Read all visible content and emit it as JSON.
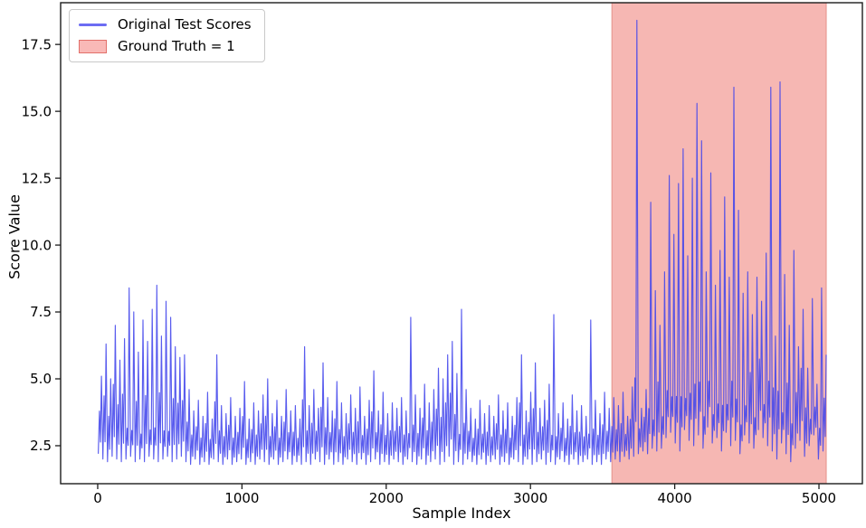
{
  "chart_data": {
    "type": "line",
    "title": "",
    "xlabel": "Sample Index",
    "ylabel": "Score Value",
    "xlim": [
      -257,
      5301
    ],
    "ylim": [
      1.08,
      19.06
    ],
    "grid": false,
    "n_samples": 5050,
    "x_ticks": [
      {
        "v": 0,
        "label": "0"
      },
      {
        "v": 1000,
        "label": "1000"
      },
      {
        "v": 2000,
        "label": "2000"
      },
      {
        "v": 3000,
        "label": "3000"
      },
      {
        "v": 4000,
        "label": "4000"
      },
      {
        "v": 5000,
        "label": "5000"
      }
    ],
    "y_ticks": [
      {
        "v": 2.5,
        "label": "2.5"
      },
      {
        "v": 5.0,
        "label": "5.0"
      },
      {
        "v": 7.5,
        "label": "7.5"
      },
      {
        "v": 10.0,
        "label": "10.0"
      },
      {
        "v": 12.5,
        "label": "12.5"
      },
      {
        "v": 15.0,
        "label": "15.0"
      },
      {
        "v": 17.5,
        "label": "17.5"
      }
    ],
    "legend": [
      {
        "label": "Original Test Scores",
        "type": "line",
        "color": "#4d4dff"
      },
      {
        "label": "Ground Truth = 1",
        "type": "patch",
        "fill": "#f9b9b7",
        "edge": "#e2706a"
      }
    ],
    "legend_position": "upper left",
    "anomaly_region": {
      "label": "Ground Truth = 1",
      "start_index": 3565,
      "end_index": 5050,
      "fill": "#f6b7b3",
      "edge": "#e89a94"
    },
    "series": [
      {
        "name": "Original Test Scores",
        "color": "#4245ec",
        "representation": "min-max envelope per bucket of samples",
        "start_index": 0,
        "bucket_size": 32,
        "env_max": [
          5.1,
          6.3,
          5.0,
          7.0,
          5.7,
          6.5,
          8.4,
          7.5,
          6.0,
          7.2,
          6.4,
          7.6,
          8.5,
          6.6,
          7.9,
          7.3,
          6.2,
          5.8,
          5.9,
          4.6,
          3.8,
          4.2,
          3.6,
          4.5,
          3.5,
          5.9,
          4.0,
          3.7,
          4.3,
          3.6,
          3.9,
          4.9,
          3.5,
          4.1,
          3.8,
          4.4,
          5.0,
          3.7,
          4.2,
          3.6,
          4.6,
          3.8,
          4.0,
          3.5,
          6.2,
          4.0,
          4.6,
          3.9,
          5.6,
          4.3,
          3.8,
          4.9,
          4.1,
          3.7,
          4.4,
          3.9,
          4.7,
          3.6,
          4.2,
          5.3,
          3.8,
          4.5,
          3.7,
          4.1,
          3.9,
          4.3,
          3.8,
          7.3,
          4.4,
          3.9,
          4.8,
          4.1,
          4.6,
          5.4,
          5.0,
          5.9,
          6.4,
          5.2,
          7.6,
          4.6,
          3.9,
          3.5,
          4.2,
          3.7,
          4.0,
          3.6,
          4.4,
          3.8,
          4.1,
          3.6,
          4.3,
          5.9,
          3.8,
          4.5,
          5.6,
          3.9,
          4.2,
          4.8,
          7.4,
          3.7,
          4.1,
          3.5,
          4.4,
          3.8,
          4.0,
          3.6,
          7.2,
          4.2,
          3.7,
          4.5,
          3.9,
          4.3,
          4.0,
          4.5,
          3.6,
          4.7,
          18.4,
          3.9,
          4.6,
          11.6,
          8.3,
          7.0,
          9.0,
          12.6,
          10.4,
          12.3,
          13.6,
          9.6,
          12.5,
          15.3,
          13.9,
          9.0,
          12.7,
          8.5,
          9.8,
          11.8,
          8.8,
          15.9,
          11.3,
          8.2,
          9.0,
          7.4,
          8.8,
          7.9,
          9.7,
          15.9,
          6.6,
          16.1,
          8.9,
          7.0,
          9.8,
          6.2,
          7.6,
          5.4,
          8.0,
          4.8,
          8.4,
          5.9
        ],
        "env_min": [
          2.2,
          2.0,
          1.9,
          2.1,
          2.0,
          1.9,
          2.0,
          2.1,
          1.9,
          2.0,
          1.9,
          2.1,
          2.0,
          1.9,
          2.0,
          2.1,
          1.9,
          2.0,
          2.1,
          1.9,
          1.8,
          2.0,
          1.8,
          1.9,
          1.8,
          2.0,
          1.9,
          1.8,
          2.0,
          1.8,
          1.9,
          2.0,
          1.8,
          1.9,
          1.8,
          2.0,
          1.9,
          1.8,
          2.0,
          1.8,
          1.9,
          2.0,
          1.8,
          1.9,
          1.8,
          1.9,
          1.8,
          2.0,
          1.9,
          1.8,
          2.0,
          1.8,
          1.9,
          1.8,
          2.0,
          1.9,
          1.8,
          2.0,
          1.8,
          1.9,
          2.0,
          1.8,
          1.9,
          1.8,
          2.0,
          1.9,
          1.8,
          2.0,
          1.9,
          1.8,
          2.0,
          1.8,
          1.9,
          2.0,
          1.8,
          1.9,
          2.1,
          1.8,
          1.9,
          1.8,
          2.0,
          1.9,
          1.8,
          2.0,
          1.8,
          1.9,
          2.0,
          1.8,
          1.9,
          1.8,
          2.0,
          1.9,
          1.8,
          2.0,
          1.8,
          1.9,
          2.0,
          1.8,
          1.9,
          1.8,
          2.0,
          1.9,
          1.8,
          2.0,
          1.8,
          1.9,
          2.0,
          1.8,
          1.9,
          1.8,
          2.0,
          1.9,
          2.0,
          1.9,
          2.1,
          2.0,
          2.1,
          2.2,
          2.3,
          2.2,
          2.4,
          2.3,
          2.4,
          2.8,
          3.0,
          2.6,
          2.3,
          3.1,
          2.7,
          2.5,
          2.9,
          2.4,
          3.2,
          2.6,
          2.8,
          2.3,
          3.0,
          2.5,
          2.7,
          2.2,
          2.9,
          2.6,
          2.4,
          3.1,
          2.8,
          2.5,
          2.3,
          2.0,
          2.6,
          2.2,
          1.9,
          2.4,
          2.7,
          2.1,
          2.5,
          2.9,
          2.0,
          2.3
        ]
      }
    ],
    "notable_peaks": [
      {
        "index": 200,
        "value": 8.4
      },
      {
        "index": 408,
        "value": 8.5
      },
      {
        "index": 1437,
        "value": 6.2
      },
      {
        "index": 2158,
        "value": 7.3
      },
      {
        "index": 2510,
        "value": 7.6
      },
      {
        "index": 2917,
        "value": 5.9
      },
      {
        "index": 3162,
        "value": 7.4
      },
      {
        "index": 3400,
        "value": 7.2
      },
      {
        "index": 3733,
        "value": 18.4
      },
      {
        "index": 3827,
        "value": 11.6
      },
      {
        "index": 3952,
        "value": 12.6
      },
      {
        "index": 4046,
        "value": 13.6
      },
      {
        "index": 4141,
        "value": 15.3
      },
      {
        "index": 4184,
        "value": 13.9
      },
      {
        "index": 4247,
        "value": 12.7
      },
      {
        "index": 4322,
        "value": 11.8
      },
      {
        "index": 4385,
        "value": 15.9
      },
      {
        "index": 4649,
        "value": 15.9
      },
      {
        "index": 4718,
        "value": 16.1
      },
      {
        "index": 5000,
        "value": 8.4
      }
    ]
  }
}
